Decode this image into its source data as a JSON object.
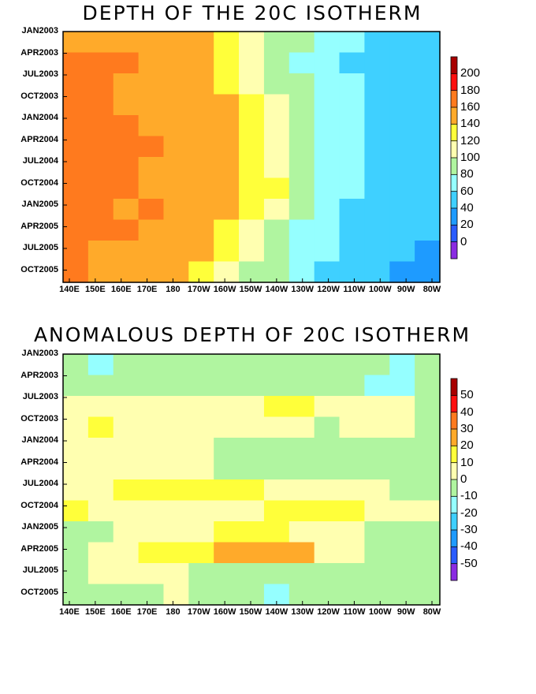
{
  "chart_data": [
    {
      "type": "heatmap",
      "title": "DEPTH OF THE 20C ISOTHERM",
      "xlabel": "",
      "ylabel": "",
      "x_tick_labels": [
        "140E",
        "150E",
        "160E",
        "170E",
        "180",
        "170W",
        "160W",
        "150W",
        "140W",
        "130W",
        "120W",
        "110W",
        "100W",
        "90W",
        "80W"
      ],
      "y_tick_labels": [
        "JAN2003",
        "APR2003",
        "JUL2003",
        "OCT2003",
        "JAN2004",
        "APR2004",
        "JUL2004",
        "OCT2004",
        "JAN2005",
        "APR2005",
        "JUL2005",
        "OCT2005"
      ],
      "colorbar": {
        "ticks": [
          "200",
          "180",
          "160",
          "140",
          "120",
          "100",
          "80",
          "60",
          "40",
          "20",
          "0"
        ],
        "levels": [
          -20,
          0,
          20,
          40,
          60,
          80,
          100,
          120,
          140,
          160,
          180,
          200,
          220
        ],
        "colors": [
          "#8a2be2",
          "#2a5cff",
          "#1e9bff",
          "#3fd0ff",
          "#95ffff",
          "#b0f5a0",
          "#ffffb0",
          "#ffff3a",
          "#ffaa2a",
          "#ff7a1e",
          "#ff1010",
          "#a80000"
        ]
      },
      "rows": [
        {
          "label": "JAN2003",
          "values": [
            155,
            158,
            158,
            158,
            150,
            140,
            120,
            100,
            90,
            80,
            70,
            60,
            55,
            50,
            40
          ]
        },
        {
          "label": "APR2003",
          "values": [
            175,
            160,
            160,
            158,
            155,
            145,
            120,
            100,
            88,
            78,
            70,
            55,
            50,
            45,
            40
          ]
        },
        {
          "label": "JUL2003",
          "values": [
            160,
            160,
            158,
            158,
            155,
            150,
            138,
            112,
            92,
            82,
            70,
            60,
            50,
            45,
            40
          ]
        },
        {
          "label": "OCT2003",
          "values": [
            160,
            160,
            158,
            158,
            155,
            152,
            140,
            125,
            100,
            82,
            70,
            60,
            50,
            45,
            40
          ]
        },
        {
          "label": "JAN2004",
          "values": [
            165,
            175,
            168,
            158,
            155,
            152,
            145,
            130,
            110,
            90,
            72,
            62,
            55,
            45,
            40
          ]
        },
        {
          "label": "APR2004",
          "values": [
            175,
            175,
            168,
            160,
            155,
            155,
            145,
            120,
            100,
            85,
            70,
            60,
            52,
            50,
            45
          ]
        },
        {
          "label": "JUL2004",
          "values": [
            170,
            165,
            160,
            158,
            155,
            150,
            140,
            125,
            110,
            90,
            75,
            60,
            55,
            50,
            45
          ]
        },
        {
          "label": "OCT2004",
          "values": [
            160,
            170,
            160,
            158,
            155,
            152,
            148,
            135,
            120,
            92,
            75,
            60,
            55,
            48,
            45
          ]
        },
        {
          "label": "JAN2005",
          "values": [
            160,
            160,
            158,
            162,
            158,
            150,
            140,
            125,
            105,
            85,
            70,
            58,
            55,
            45,
            40
          ]
        },
        {
          "label": "APR2005",
          "values": [
            165,
            160,
            165,
            158,
            155,
            145,
            125,
            105,
            90,
            78,
            62,
            55,
            50,
            45,
            40
          ]
        },
        {
          "label": "JUL2005",
          "values": [
            160,
            158,
            158,
            158,
            150,
            140,
            120,
            100,
            85,
            72,
            62,
            55,
            50,
            40,
            38
          ]
        },
        {
          "label": "OCT2005",
          "values": [
            160,
            158,
            158,
            158,
            150,
            138,
            115,
            95,
            80,
            70,
            58,
            55,
            48,
            38,
            36
          ]
        }
      ]
    },
    {
      "type": "heatmap",
      "title": "ANOMALOUS DEPTH OF 20C ISOTHERM",
      "xlabel": "",
      "ylabel": "",
      "x_tick_labels": [
        "140E",
        "150E",
        "160E",
        "170E",
        "180",
        "170W",
        "160W",
        "150W",
        "140W",
        "130W",
        "120W",
        "110W",
        "100W",
        "90W",
        "80W"
      ],
      "y_tick_labels": [
        "JAN2003",
        "APR2003",
        "JUL2003",
        "OCT2003",
        "JAN2004",
        "APR2004",
        "JUL2004",
        "OCT2004",
        "JAN2005",
        "APR2005",
        "JUL2005",
        "OCT2005"
      ],
      "colorbar": {
        "ticks": [
          "50",
          "40",
          "30",
          "20",
          "10",
          "0",
          "-10",
          "-20",
          "-30",
          "-40",
          "-50"
        ],
        "levels": [
          -60,
          -50,
          -40,
          -30,
          -20,
          -10,
          0,
          10,
          20,
          30,
          40,
          50,
          60
        ],
        "colors": [
          "#8a2be2",
          "#2a5cff",
          "#1e9bff",
          "#3fd0ff",
          "#95ffff",
          "#b0f5a0",
          "#ffffb0",
          "#ffff3a",
          "#ffaa2a",
          "#ff7a1e",
          "#ff1010",
          "#a80000"
        ]
      },
      "rows": [
        {
          "label": "JAN2003",
          "values": [
            -8,
            -12,
            -5,
            -3,
            -2,
            -2,
            -4,
            -5,
            -6,
            -5,
            -6,
            -8,
            -10,
            -12,
            -8
          ]
        },
        {
          "label": "APR2003",
          "values": [
            -4,
            -3,
            -2,
            -2,
            -3,
            -4,
            -5,
            -6,
            -5,
            -6,
            -6,
            -8,
            -12,
            -12,
            -6
          ]
        },
        {
          "label": "JUL2003",
          "values": [
            3,
            4,
            6,
            4,
            3,
            5,
            6,
            6,
            12,
            15,
            8,
            6,
            4,
            2,
            -2
          ]
        },
        {
          "label": "OCT2003",
          "values": [
            6,
            12,
            5,
            8,
            3,
            2,
            4,
            6,
            4,
            2,
            -2,
            2,
            4,
            4,
            -4
          ]
        },
        {
          "label": "JAN2004",
          "values": [
            2,
            3,
            6,
            3,
            2,
            1,
            -2,
            -6,
            -8,
            -5,
            -4,
            -6,
            -6,
            -6,
            -4
          ]
        },
        {
          "label": "APR2004",
          "values": [
            4,
            2,
            6,
            4,
            5,
            6,
            -4,
            -6,
            -5,
            -2,
            -4,
            -5,
            -6,
            -8,
            -6
          ]
        },
        {
          "label": "JUL2004",
          "values": [
            6,
            8,
            12,
            14,
            12,
            14,
            16,
            12,
            6,
            4,
            2,
            3,
            2,
            -3,
            -2
          ]
        },
        {
          "label": "OCT2004",
          "values": [
            12,
            4,
            3,
            2,
            4,
            4,
            6,
            8,
            12,
            10,
            12,
            14,
            8,
            4,
            2
          ]
        },
        {
          "label": "JAN2005",
          "values": [
            -4,
            -2,
            2,
            3,
            5,
            8,
            10,
            12,
            12,
            6,
            4,
            2,
            -3,
            -6,
            -4
          ]
        },
        {
          "label": "APR2005",
          "values": [
            -6,
            4,
            8,
            12,
            14,
            18,
            25,
            20,
            28,
            20,
            8,
            2,
            -4,
            -8,
            -6
          ]
        },
        {
          "label": "JUL2005",
          "values": [
            -4,
            2,
            3,
            5,
            4,
            -2,
            -4,
            -6,
            -8,
            -10,
            -8,
            -6,
            -6,
            -4,
            -2
          ]
        },
        {
          "label": "OCT2005",
          "values": [
            -2,
            -4,
            -3,
            -2,
            2,
            -3,
            -4,
            -8,
            -14,
            -10,
            -8,
            -6,
            -8,
            -10,
            -6
          ]
        }
      ]
    }
  ]
}
